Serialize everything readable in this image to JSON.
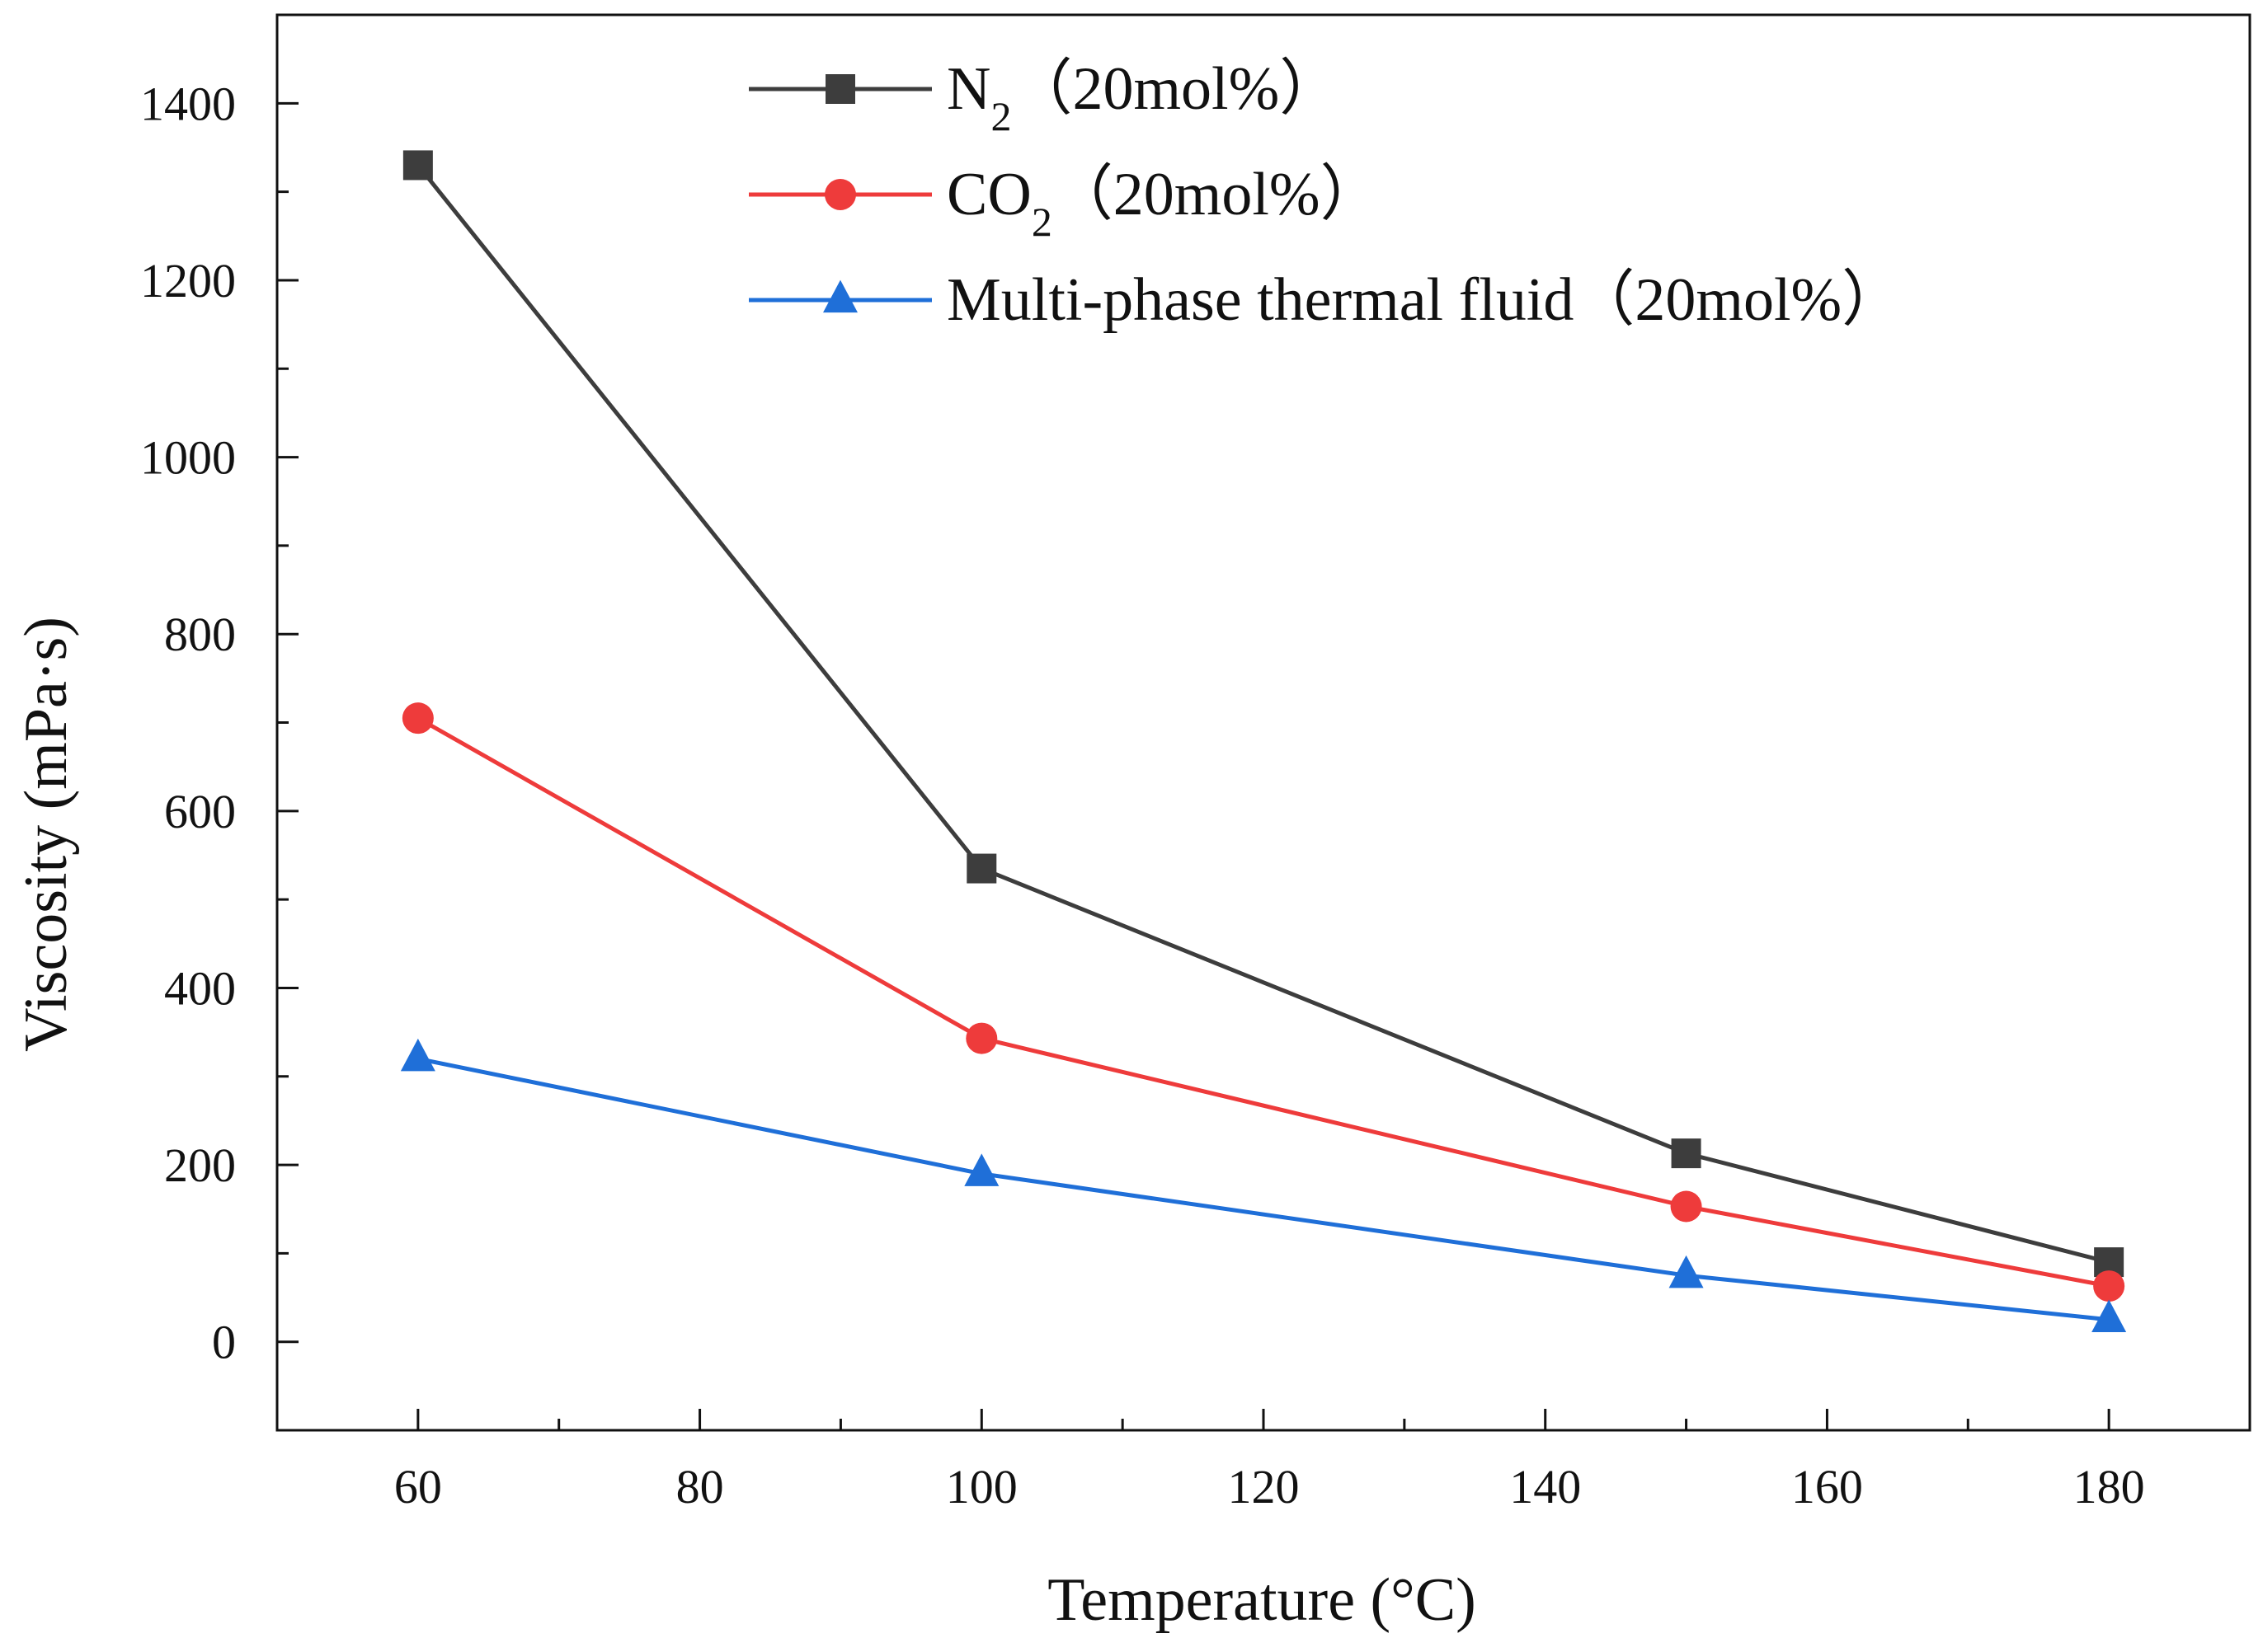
{
  "chart_data": {
    "type": "line",
    "title": "",
    "xlabel": "Temperature (°C)",
    "ylabel": "Viscosity (mPa·s)",
    "xlim": [
      50,
      190
    ],
    "ylim": [
      -100,
      1500
    ],
    "x_ticks": [
      60,
      80,
      100,
      120,
      140,
      160,
      180
    ],
    "x_tick_labels": [
      "60",
      "80",
      "100",
      "120",
      "140",
      "160",
      "180"
    ],
    "y_ticks": [
      0,
      200,
      400,
      600,
      800,
      1000,
      1200,
      1400
    ],
    "y_tick_labels": [
      "0",
      "200",
      "400",
      "600",
      "800",
      "1000",
      "1200",
      "1400"
    ],
    "grid": false,
    "legend_position": "top-right",
    "series": [
      {
        "name": "N2（20mol%）",
        "legend_main": "N",
        "legend_sub": "2",
        "legend_suffix": "（20mol%）",
        "marker": "square",
        "color": "#3d3d3d",
        "x": [
          60,
          100,
          150,
          180
        ],
        "values": [
          1330,
          535,
          213,
          90
        ]
      },
      {
        "name": "CO2（20mol%）",
        "legend_main": "CO",
        "legend_sub": "2",
        "legend_suffix": "（20mol%）",
        "marker": "circle",
        "color": "#ee3b3b",
        "x": [
          60,
          100,
          150,
          180
        ],
        "values": [
          705,
          343,
          153,
          63
        ]
      },
      {
        "name": "Multi-phase thermal fluid（20mol%）",
        "legend_main": "Multi-phase thermal fluid（20mol%）",
        "legend_sub": "",
        "legend_suffix": "",
        "marker": "triangle",
        "color": "#1f6fd8",
        "x": [
          60,
          100,
          150,
          180
        ],
        "values": [
          320,
          190,
          75,
          25
        ]
      }
    ]
  }
}
